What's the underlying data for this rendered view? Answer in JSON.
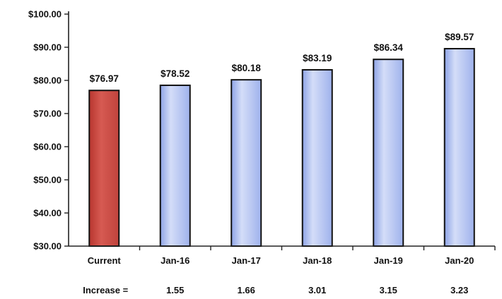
{
  "chart_data": {
    "type": "bar",
    "categories": [
      "Current",
      "Jan-16",
      "Jan-17",
      "Jan-18",
      "Jan-19",
      "Jan-20"
    ],
    "values": [
      76.97,
      78.52,
      80.18,
      83.19,
      86.34,
      89.57
    ],
    "value_labels": [
      "$76.97",
      "$78.52",
      "$80.18",
      "$83.19",
      "$86.34",
      "$89.57"
    ],
    "ylim": [
      30,
      100
    ],
    "yticks": [
      30,
      40,
      50,
      60,
      70,
      80,
      90,
      100
    ],
    "ytick_labels": [
      "$30.00",
      "$40.00",
      "$50.00",
      "$60.00",
      "$70.00",
      "$80.00",
      "$90.00",
      "$100.00"
    ],
    "title": "",
    "xlabel": "",
    "ylabel": "",
    "grid": false,
    "legend": "none",
    "colors": {
      "current": "#c9463f",
      "projected": "#a6b8ee",
      "projected_highlight": "#d4ddf8",
      "bar_border": "#111111"
    },
    "increase_row": {
      "label": "Increase =",
      "values": [
        "1.55",
        "1.66",
        "3.01",
        "3.15",
        "3.23"
      ]
    }
  }
}
